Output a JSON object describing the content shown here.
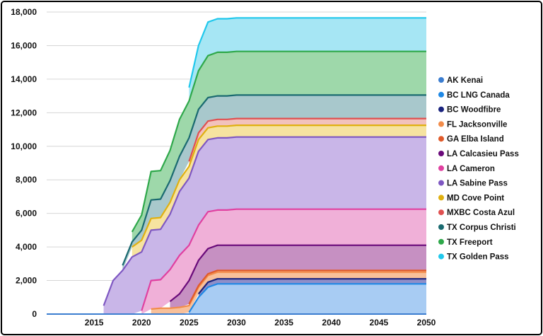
{
  "chart_data": {
    "type": "area",
    "stacked": true,
    "title": "",
    "xlabel": "",
    "ylabel": "",
    "xlim": [
      2010,
      2050
    ],
    "ylim": [
      0,
      18000
    ],
    "x_ticks": [
      2015,
      2020,
      2025,
      2030,
      2035,
      2040,
      2045,
      2050
    ],
    "y_ticks": [
      0,
      2000,
      4000,
      6000,
      8000,
      10000,
      12000,
      14000,
      16000,
      18000
    ],
    "y_tick_labels": [
      "0",
      "2,000",
      "4,000",
      "6,000",
      "8,000",
      "10,000",
      "12,000",
      "14,000",
      "16,000",
      "18,000"
    ],
    "grid": "horizontal",
    "legend_position": "right",
    "x": [
      2016,
      2017,
      2018,
      2019,
      2020,
      2021,
      2022,
      2023,
      2024,
      2025,
      2026,
      2027,
      2028,
      2029,
      2030,
      2035,
      2040,
      2045,
      2050
    ],
    "series": [
      {
        "name": "AK Kenai",
        "color": "#4a90e2",
        "line": "#3b7dd0",
        "values": [
          0,
          0,
          0,
          0,
          0,
          0,
          0,
          0,
          0,
          0,
          0,
          0,
          0,
          0,
          0,
          0,
          0,
          0,
          0
        ]
      },
      {
        "name": "BC LNG Canada",
        "color": "#a8ccf3",
        "line": "#1e88e5",
        "values": [
          0,
          0,
          0,
          0,
          0,
          0,
          0,
          0,
          0,
          100,
          1000,
          1600,
          1800,
          1800,
          1800,
          1800,
          1800,
          1800,
          1800
        ]
      },
      {
        "name": "BC Woodfibre",
        "color": "#8f8fc8",
        "line": "#1a237e",
        "values": [
          0,
          0,
          0,
          0,
          0,
          0,
          0,
          0,
          0,
          0,
          200,
          300,
          300,
          300,
          300,
          300,
          300,
          300,
          300
        ]
      },
      {
        "name": "FL Jacksonville",
        "color": "#f8c09a",
        "line": "#f28c4a",
        "values": [
          0,
          0,
          0,
          0,
          0,
          300,
          350,
          350,
          400,
          400,
          400,
          400,
          400,
          400,
          400,
          400,
          400,
          400,
          400
        ]
      },
      {
        "name": "GA Elba Island",
        "color": "#f2b8a0",
        "line": "#e05a2a",
        "values": [
          0,
          0,
          0,
          0,
          0,
          0,
          0,
          0,
          0,
          100,
          100,
          100,
          100,
          100,
          100,
          100,
          100,
          100,
          100
        ]
      },
      {
        "name": "LA Calcasieu Pass",
        "color": "#c690c2",
        "line": "#6a0a7a",
        "values": [
          0,
          0,
          0,
          0,
          0,
          0,
          0,
          400,
          800,
          1400,
          1500,
          1500,
          1500,
          1500,
          1500,
          1500,
          1500,
          1500,
          1500
        ]
      },
      {
        "name": "LA Cameron",
        "color": "#f0b0d8",
        "line": "#e040a0",
        "values": [
          0,
          0,
          0,
          0,
          200,
          1700,
          1700,
          1900,
          2300,
          2100,
          2100,
          2200,
          2100,
          2100,
          2150,
          2150,
          2150,
          2150,
          2150
        ]
      },
      {
        "name": "LA Sabine Pass",
        "color": "#c9b6e8",
        "line": "#7e57c2",
        "values": [
          500,
          2000,
          2600,
          3400,
          3500,
          3000,
          3000,
          3300,
          3800,
          4000,
          4400,
          4300,
          4300,
          4300,
          4300,
          4300,
          4300,
          4300,
          4300
        ]
      },
      {
        "name": "MD Cove Point",
        "color": "#f6e3a0",
        "line": "#e0b010",
        "values": [
          0,
          0,
          0,
          600,
          700,
          700,
          700,
          700,
          700,
          700,
          700,
          700,
          700,
          700,
          700,
          700,
          700,
          700,
          700
        ]
      },
      {
        "name": "MXBC Costa Azul",
        "color": "#f2c2bc",
        "line": "#e05050",
        "values": [
          0,
          0,
          0,
          0,
          0,
          0,
          0,
          0,
          0,
          300,
          400,
          400,
          400,
          400,
          400,
          400,
          400,
          400,
          400
        ]
      },
      {
        "name": "TX Corpus Christi",
        "color": "#a8c8cc",
        "line": "#1a6a70",
        "values": [
          0,
          0,
          300,
          300,
          600,
          1100,
          1100,
          1300,
          1400,
          1400,
          1400,
          1400,
          1400,
          1400,
          1400,
          1400,
          1400,
          1400,
          1400
        ]
      },
      {
        "name": "TX Freeport",
        "color": "#9ed8aa",
        "line": "#2ea84a",
        "values": [
          0,
          0,
          0,
          600,
          900,
          1700,
          1700,
          1800,
          2200,
          2200,
          2300,
          2500,
          2600,
          2600,
          2600,
          2600,
          2600,
          2600,
          2600
        ]
      },
      {
        "name": "TX Golden Pass",
        "color": "#a6e6f4",
        "line": "#20c8ec",
        "values": [
          0,
          0,
          0,
          0,
          0,
          0,
          0,
          0,
          0,
          800,
          1500,
          2000,
          2000,
          2000,
          2000,
          2000,
          2000,
          2000,
          2000
        ]
      }
    ]
  }
}
